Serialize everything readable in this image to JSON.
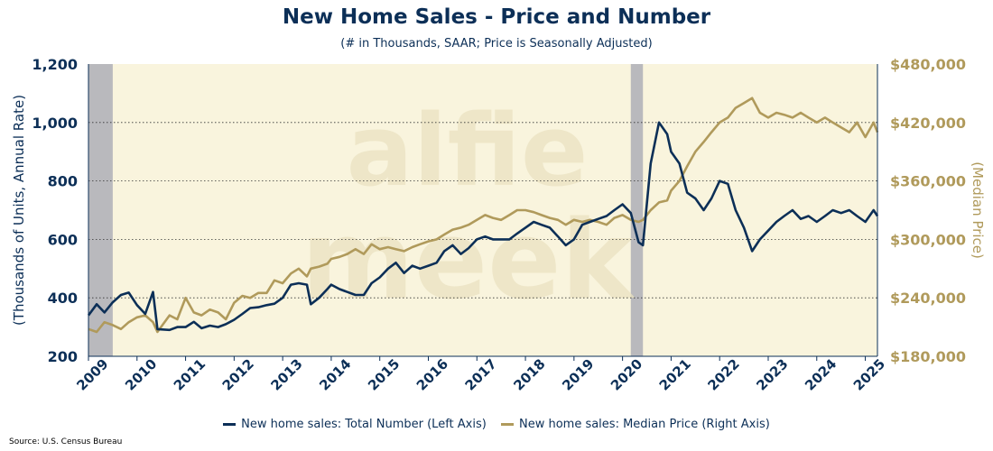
{
  "chart_data": {
    "type": "line",
    "title": "New Home Sales - Price and Number",
    "subtitle": "(# in Thousands, SAAR; Price is Seasonally Adjusted)",
    "ylabel_left": "(Thousands of Units, Annual Rate)",
    "ylabel_right": "(Median Price)",
    "xlabel": "",
    "xlim": [
      2009.0,
      2025.25
    ],
    "ylim_left": [
      200,
      1200
    ],
    "ylim_right": [
      180000,
      480000
    ],
    "x_ticks": [
      "2009",
      "2010",
      "2011",
      "2012",
      "2013",
      "2014",
      "2015",
      "2016",
      "2017",
      "2018",
      "2019",
      "2020",
      "2021",
      "2022",
      "2023",
      "2024",
      "2025"
    ],
    "y_ticks_left": [
      "200",
      "400",
      "600",
      "800",
      "1,000",
      "1,200"
    ],
    "y_ticks_right": [
      "$180,000",
      "$240,000",
      "$300,000",
      "$360,000",
      "$420,000",
      "$480,000"
    ],
    "gridlines": "horizontal dotted",
    "legend_position": "bottom",
    "recessions": [
      [
        2009.0,
        2009.5
      ],
      [
        2020.17,
        2020.42
      ]
    ],
    "colors": {
      "number": "#0c2f57",
      "price": "#b09a5b",
      "plot_bg": "#f9f4dd",
      "recession": "#b9b9bd"
    },
    "series": [
      {
        "name": "New home sales: Total Number (Left Axis)",
        "axis": "left",
        "points": [
          [
            2009.0,
            340
          ],
          [
            2009.17,
            378
          ],
          [
            2009.33,
            350
          ],
          [
            2009.5,
            385
          ],
          [
            2009.67,
            410
          ],
          [
            2009.83,
            418
          ],
          [
            2010.0,
            375
          ],
          [
            2010.17,
            345
          ],
          [
            2010.33,
            420
          ],
          [
            2010.42,
            293
          ],
          [
            2010.67,
            290
          ],
          [
            2010.83,
            300
          ],
          [
            2011.0,
            300
          ],
          [
            2011.17,
            318
          ],
          [
            2011.33,
            296
          ],
          [
            2011.5,
            305
          ],
          [
            2011.67,
            300
          ],
          [
            2011.83,
            310
          ],
          [
            2012.0,
            325
          ],
          [
            2012.17,
            345
          ],
          [
            2012.33,
            365
          ],
          [
            2012.5,
            368
          ],
          [
            2012.67,
            375
          ],
          [
            2012.83,
            380
          ],
          [
            2013.0,
            400
          ],
          [
            2013.17,
            445
          ],
          [
            2013.33,
            450
          ],
          [
            2013.5,
            445
          ],
          [
            2013.58,
            378
          ],
          [
            2013.75,
            400
          ],
          [
            2013.92,
            430
          ],
          [
            2014.0,
            445
          ],
          [
            2014.17,
            430
          ],
          [
            2014.33,
            420
          ],
          [
            2014.5,
            410
          ],
          [
            2014.67,
            410
          ],
          [
            2014.83,
            450
          ],
          [
            2015.0,
            470
          ],
          [
            2015.17,
            500
          ],
          [
            2015.33,
            520
          ],
          [
            2015.5,
            485
          ],
          [
            2015.67,
            510
          ],
          [
            2015.83,
            500
          ],
          [
            2016.0,
            510
          ],
          [
            2016.17,
            520
          ],
          [
            2016.33,
            560
          ],
          [
            2016.5,
            580
          ],
          [
            2016.67,
            550
          ],
          [
            2016.83,
            570
          ],
          [
            2017.0,
            600
          ],
          [
            2017.17,
            610
          ],
          [
            2017.33,
            600
          ],
          [
            2017.5,
            600
          ],
          [
            2017.67,
            600
          ],
          [
            2017.83,
            620
          ],
          [
            2018.0,
            640
          ],
          [
            2018.17,
            660
          ],
          [
            2018.33,
            650
          ],
          [
            2018.5,
            640
          ],
          [
            2018.67,
            610
          ],
          [
            2018.83,
            580
          ],
          [
            2019.0,
            600
          ],
          [
            2019.17,
            650
          ],
          [
            2019.33,
            660
          ],
          [
            2019.5,
            670
          ],
          [
            2019.67,
            680
          ],
          [
            2019.83,
            700
          ],
          [
            2020.0,
            720
          ],
          [
            2020.17,
            690
          ],
          [
            2020.33,
            590
          ],
          [
            2020.42,
            580
          ],
          [
            2020.58,
            860
          ],
          [
            2020.75,
            1000
          ],
          [
            2020.92,
            960
          ],
          [
            2021.0,
            900
          ],
          [
            2021.17,
            860
          ],
          [
            2021.33,
            760
          ],
          [
            2021.5,
            740
          ],
          [
            2021.67,
            700
          ],
          [
            2021.83,
            740
          ],
          [
            2022.0,
            800
          ],
          [
            2022.17,
            790
          ],
          [
            2022.33,
            700
          ],
          [
            2022.5,
            640
          ],
          [
            2022.67,
            560
          ],
          [
            2022.83,
            600
          ],
          [
            2023.0,
            630
          ],
          [
            2023.17,
            660
          ],
          [
            2023.33,
            680
          ],
          [
            2023.5,
            700
          ],
          [
            2023.67,
            670
          ],
          [
            2023.83,
            680
          ],
          [
            2024.0,
            660
          ],
          [
            2024.17,
            680
          ],
          [
            2024.33,
            700
          ],
          [
            2024.5,
            690
          ],
          [
            2024.67,
            700
          ],
          [
            2024.83,
            680
          ],
          [
            2025.0,
            660
          ],
          [
            2025.17,
            700
          ],
          [
            2025.25,
            680
          ]
        ]
      },
      {
        "name": "New home sales: Median Price (Right Axis)",
        "axis": "right",
        "points": [
          [
            2009.0,
            208000
          ],
          [
            2009.17,
            205000
          ],
          [
            2009.33,
            215000
          ],
          [
            2009.5,
            212000
          ],
          [
            2009.67,
            208000
          ],
          [
            2009.83,
            215000
          ],
          [
            2010.0,
            220000
          ],
          [
            2010.17,
            222000
          ],
          [
            2010.33,
            215000
          ],
          [
            2010.42,
            205000
          ],
          [
            2010.67,
            222000
          ],
          [
            2010.83,
            218000
          ],
          [
            2011.0,
            240000
          ],
          [
            2011.17,
            225000
          ],
          [
            2011.33,
            222000
          ],
          [
            2011.5,
            228000
          ],
          [
            2011.67,
            225000
          ],
          [
            2011.83,
            218000
          ],
          [
            2012.0,
            235000
          ],
          [
            2012.17,
            242000
          ],
          [
            2012.33,
            240000
          ],
          [
            2012.5,
            245000
          ],
          [
            2012.67,
            245000
          ],
          [
            2012.83,
            258000
          ],
          [
            2013.0,
            255000
          ],
          [
            2013.17,
            265000
          ],
          [
            2013.33,
            270000
          ],
          [
            2013.5,
            262000
          ],
          [
            2013.58,
            270000
          ],
          [
            2013.75,
            272000
          ],
          [
            2013.92,
            275000
          ],
          [
            2014.0,
            280000
          ],
          [
            2014.17,
            282000
          ],
          [
            2014.33,
            285000
          ],
          [
            2014.5,
            290000
          ],
          [
            2014.67,
            285000
          ],
          [
            2014.83,
            295000
          ],
          [
            2015.0,
            290000
          ],
          [
            2015.17,
            292000
          ],
          [
            2015.33,
            290000
          ],
          [
            2015.5,
            288000
          ],
          [
            2015.67,
            292000
          ],
          [
            2015.83,
            295000
          ],
          [
            2016.0,
            298000
          ],
          [
            2016.17,
            300000
          ],
          [
            2016.33,
            305000
          ],
          [
            2016.5,
            310000
          ],
          [
            2016.67,
            312000
          ],
          [
            2016.83,
            315000
          ],
          [
            2017.0,
            320000
          ],
          [
            2017.17,
            325000
          ],
          [
            2017.33,
            322000
          ],
          [
            2017.5,
            320000
          ],
          [
            2017.67,
            325000
          ],
          [
            2017.83,
            330000
          ],
          [
            2018.0,
            330000
          ],
          [
            2018.17,
            328000
          ],
          [
            2018.33,
            325000
          ],
          [
            2018.5,
            322000
          ],
          [
            2018.67,
            320000
          ],
          [
            2018.83,
            315000
          ],
          [
            2019.0,
            320000
          ],
          [
            2019.17,
            318000
          ],
          [
            2019.33,
            320000
          ],
          [
            2019.5,
            318000
          ],
          [
            2019.67,
            315000
          ],
          [
            2019.83,
            322000
          ],
          [
            2020.0,
            325000
          ],
          [
            2020.17,
            320000
          ],
          [
            2020.33,
            318000
          ],
          [
            2020.42,
            320000
          ],
          [
            2020.58,
            330000
          ],
          [
            2020.75,
            338000
          ],
          [
            2020.92,
            340000
          ],
          [
            2021.0,
            350000
          ],
          [
            2021.17,
            360000
          ],
          [
            2021.33,
            375000
          ],
          [
            2021.5,
            390000
          ],
          [
            2021.67,
            400000
          ],
          [
            2021.83,
            410000
          ],
          [
            2022.0,
            420000
          ],
          [
            2022.17,
            425000
          ],
          [
            2022.33,
            435000
          ],
          [
            2022.5,
            440000
          ],
          [
            2022.67,
            445000
          ],
          [
            2022.83,
            430000
          ],
          [
            2023.0,
            425000
          ],
          [
            2023.17,
            430000
          ],
          [
            2023.33,
            428000
          ],
          [
            2023.5,
            425000
          ],
          [
            2023.67,
            430000
          ],
          [
            2023.83,
            425000
          ],
          [
            2024.0,
            420000
          ],
          [
            2024.17,
            425000
          ],
          [
            2024.33,
            420000
          ],
          [
            2024.5,
            415000
          ],
          [
            2024.67,
            410000
          ],
          [
            2024.83,
            420000
          ],
          [
            2025.0,
            405000
          ],
          [
            2025.17,
            420000
          ],
          [
            2025.25,
            410000
          ]
        ]
      }
    ],
    "source": "Source: U.S. Census Bureau",
    "watermark": "alfie meek"
  }
}
